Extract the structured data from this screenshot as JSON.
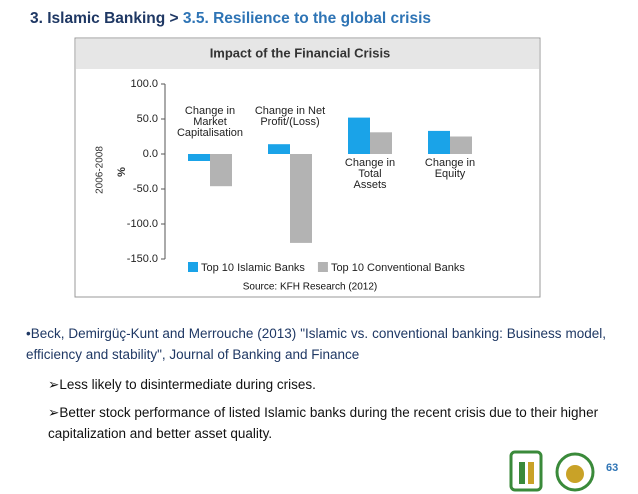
{
  "header": {
    "section": "3. Islamic Banking >",
    "title": "3.5. Resilience to the global crisis"
  },
  "chart_data": {
    "type": "bar",
    "title": "Impact of the Financial Crisis",
    "y_label": "%",
    "period_label": "2006-2008",
    "categories": [
      "Change in\nMarket\nCapitalisation",
      "Change in Net\nProfit/(Loss)",
      "Change in\nTotal\nAssets",
      "Change in\nEquity"
    ],
    "series": [
      {
        "name": "Top 10 Islamic Banks",
        "color": "#1aa3e8",
        "values": [
          -10,
          14,
          52,
          33
        ]
      },
      {
        "name": "Top 10 Conventional Banks",
        "color": "#b3b3b3",
        "values": [
          -46,
          -127,
          31,
          25
        ]
      }
    ],
    "ylim": [
      -150,
      100
    ],
    "yticks": [
      {
        "value": 100,
        "label": "100.0"
      },
      {
        "value": 50,
        "label": "50.0"
      },
      {
        "value": 0,
        "label": "0.0"
      },
      {
        "value": -50,
        "label": "-50.0"
      },
      {
        "value": -100,
        "label": "-100.0"
      },
      {
        "value": -150,
        "label": "-150.0"
      }
    ],
    "source": "Source: KFH Research (2012)"
  },
  "body": {
    "reference": "•Beck, Demirgüç-Kunt and Merrouche (2013) \"Islamic vs. conventional banking: Business model, efficiency and stability\", Journal of Banking and Finance",
    "points": [
      "Less likely to disintermediate during crises.",
      "Better stock performance of listed Islamic banks during the recent crisis due to their higher capitalization and better asset quality."
    ]
  },
  "page_number": "63"
}
